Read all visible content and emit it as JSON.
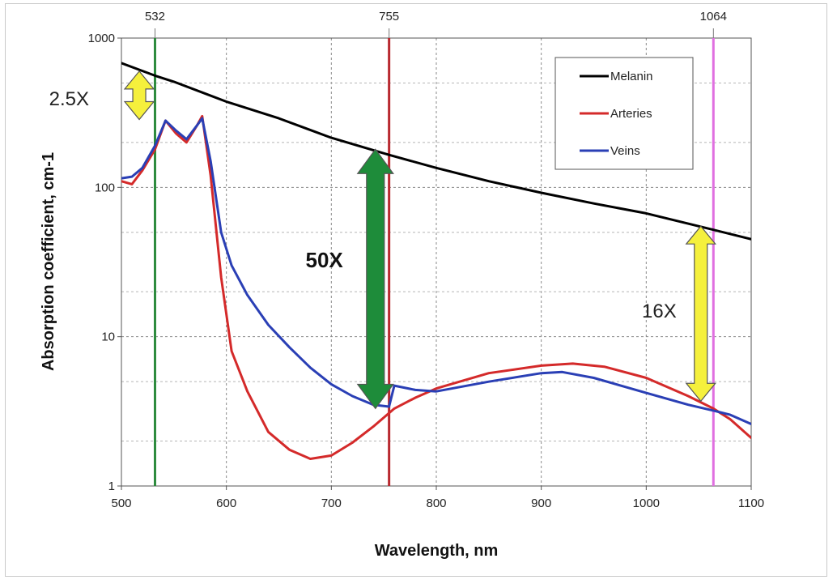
{
  "chart_data": {
    "type": "line",
    "xlabel": "Wavelength, nm",
    "ylabel": "Absorption coefficient, cm-1",
    "xlim": [
      500,
      1100
    ],
    "ylim": [
      1,
      1000
    ],
    "y_scale": "log",
    "grid": true,
    "x_ticks": [
      "500",
      "600",
      "700",
      "800",
      "900",
      "1000",
      "1100"
    ],
    "y_ticks": [
      "1",
      "10",
      "100",
      "1000"
    ],
    "legend": {
      "placement": "top-right"
    },
    "series": [
      {
        "name": "Melanin",
        "color": "#000000",
        "x": [
          500,
          532,
          550,
          600,
          650,
          700,
          755,
          800,
          850,
          900,
          950,
          1000,
          1064,
          1100
        ],
        "y": [
          680,
          560,
          510,
          375,
          290,
          215,
          165,
          135,
          110,
          92,
          78,
          67,
          52,
          45
        ]
      },
      {
        "name": "Arteries",
        "color": "#d42a2a",
        "x": [
          500,
          510,
          520,
          532,
          542,
          552,
          562,
          572,
          577,
          585,
          595,
          605,
          620,
          640,
          660,
          680,
          700,
          720,
          740,
          760,
          780,
          800,
          850,
          900,
          930,
          960,
          1000,
          1040,
          1064,
          1080,
          1100
        ],
        "y": [
          110,
          105,
          130,
          180,
          280,
          230,
          200,
          260,
          300,
          120,
          25,
          8,
          4.3,
          2.3,
          1.75,
          1.52,
          1.6,
          1.95,
          2.5,
          3.3,
          3.9,
          4.5,
          5.7,
          6.4,
          6.6,
          6.3,
          5.3,
          4.0,
          3.3,
          2.8,
          2.1
        ]
      },
      {
        "name": "Veins",
        "color": "#2a3fb5",
        "x": [
          500,
          510,
          520,
          532,
          542,
          552,
          562,
          572,
          577,
          585,
          595,
          605,
          620,
          640,
          660,
          680,
          700,
          720,
          740,
          755,
          760,
          780,
          800,
          850,
          900,
          920,
          950,
          1000,
          1040,
          1064,
          1080,
          1100
        ],
        "y": [
          115,
          118,
          135,
          190,
          280,
          240,
          210,
          260,
          290,
          150,
          50,
          30,
          19,
          12,
          8.5,
          6.2,
          4.8,
          4.0,
          3.5,
          3.4,
          4.7,
          4.4,
          4.3,
          5.0,
          5.7,
          5.8,
          5.3,
          4.2,
          3.5,
          3.2,
          3.0,
          2.6
        ]
      }
    ],
    "wavelength_markers": [
      {
        "label": "532",
        "x": 532,
        "color": "#2e8b3e"
      },
      {
        "label": "755",
        "x": 755,
        "color": "#b8292f"
      },
      {
        "label": "1064",
        "x": 1064,
        "color": "#e070e0"
      }
    ],
    "arrows": [
      {
        "label": "2.5X",
        "x": 517,
        "y_from": 285,
        "y_to": 600,
        "color": "#f5f03c"
      },
      {
        "label": "50X",
        "x": 742,
        "y_from": 3.3,
        "y_to": 180,
        "color": "#1e8c3a"
      },
      {
        "label": "16X",
        "x": 1052,
        "y_from": 3.7,
        "y_to": 55,
        "color": "#f5f03c"
      }
    ]
  }
}
